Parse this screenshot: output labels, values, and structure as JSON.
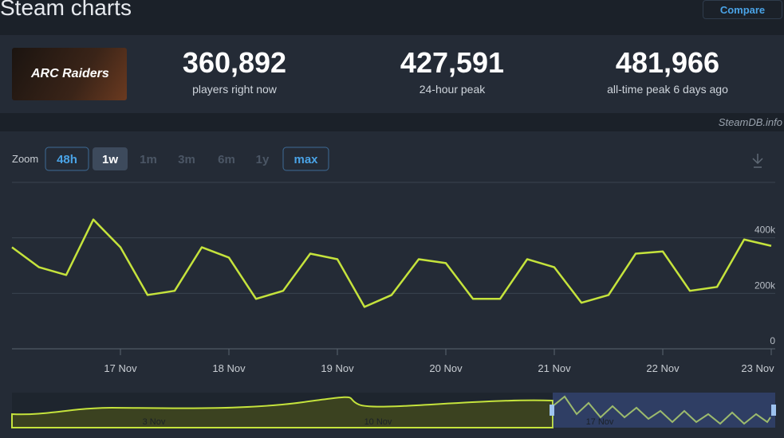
{
  "header": {
    "title": "Steam charts",
    "compare": "Compare"
  },
  "game": {
    "logo": "ARC Raiders"
  },
  "stats": [
    {
      "value": "360,892",
      "label": "players right now"
    },
    {
      "value": "427,591",
      "label": "24-hour peak"
    },
    {
      "value": "481,966",
      "label": "all-time peak 6 days ago"
    }
  ],
  "watermark": "SteamDB.info",
  "zoom": {
    "label": "Zoom",
    "options": [
      "48h",
      "1w",
      "1m",
      "3m",
      "6m",
      "1y",
      "max"
    ]
  },
  "chart_data": {
    "type": "line",
    "color": "#c5e33c",
    "grid": true,
    "categories": [
      null,
      null,
      null,
      null,
      "17 Nov",
      null,
      null,
      null,
      "18 Nov",
      null,
      null,
      null,
      "19 Nov",
      null,
      null,
      null,
      "20 Nov",
      null,
      null,
      null,
      "21 Nov",
      null,
      null,
      null,
      "22 Nov",
      null,
      null,
      null,
      "23 Nov"
    ],
    "values": [
      366000,
      294000,
      266000,
      466000,
      366000,
      194000,
      209000,
      366000,
      329000,
      180000,
      209000,
      343000,
      323000,
      151000,
      194000,
      323000,
      309000,
      180000,
      180000,
      323000,
      294000,
      166000,
      194000,
      343000,
      351000,
      209000,
      223000,
      394000,
      371000
    ],
    "ylim": [
      0,
      600000
    ],
    "yticks": [
      0,
      {
        "value": 200000,
        "label": "200k"
      },
      {
        "value": 400000,
        "label": "400k"
      }
    ]
  },
  "navigator": {
    "labels": [
      "3 Nov",
      "10 Nov",
      "17 Nov"
    ]
  }
}
